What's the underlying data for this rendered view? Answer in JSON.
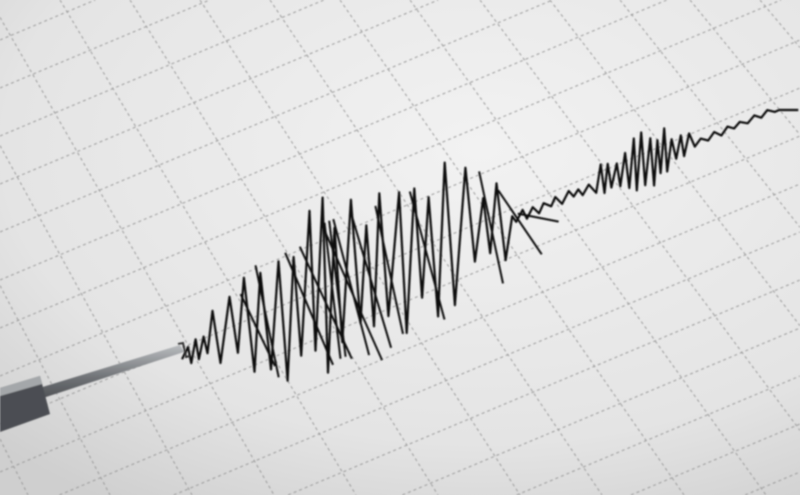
{
  "scene": {
    "subject": "seismograph-trace",
    "colors": {
      "paper": "#ececec",
      "paper_shadow": "#d4d4d4",
      "grid": "#9a9a9a",
      "trace": "#111111",
      "needle": "#7a7d80"
    }
  }
}
